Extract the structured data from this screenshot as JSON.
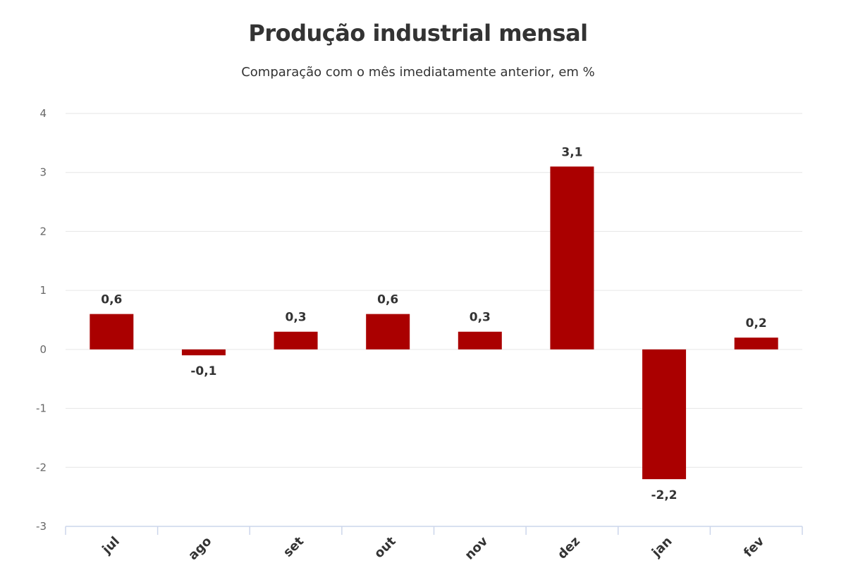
{
  "chart_data": {
    "type": "bar",
    "title": "Produção industrial mensal",
    "subtitle": "Comparação com o mês imediatamente anterior, em %",
    "categories": [
      "jul",
      "ago",
      "set",
      "out",
      "nov",
      "dez",
      "jan",
      "fev"
    ],
    "values": [
      0.6,
      -0.1,
      0.3,
      0.6,
      0.3,
      3.1,
      -2.2,
      0.2
    ],
    "value_labels": [
      "0,6",
      "-0,1",
      "0,3",
      "0,6",
      "0,3",
      "3,1",
      "-2,2",
      "0,2"
    ],
    "ylim": [
      -3,
      4
    ],
    "yticks": [
      4,
      3,
      2,
      1,
      0,
      -1,
      -2,
      -3
    ],
    "ytick_labels": [
      "4",
      "3",
      "2",
      "1",
      "0",
      "-1",
      "-2",
      "-3"
    ],
    "xlabel": "",
    "ylabel": "",
    "grid": true,
    "bar_color": "#aa0000",
    "grid_color": "#e6e6e6",
    "axis_color": "#ccd6eb"
  }
}
